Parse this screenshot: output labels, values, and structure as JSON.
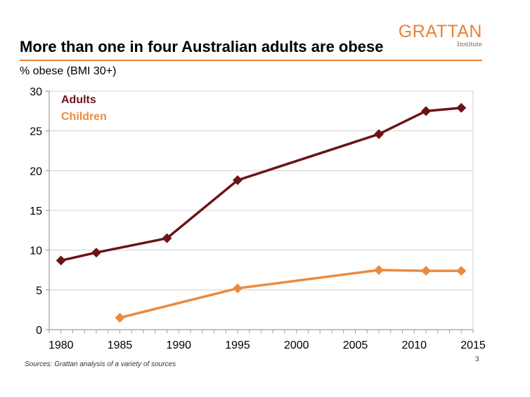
{
  "slide": {
    "title": "More than one in four Australian adults are obese",
    "logo_main": "GRATTAN",
    "logo_sub": "Institute",
    "source": "Sources: Grattan analysis of a variety of sources",
    "page_number": "3"
  },
  "colors": {
    "adults": "#6B1416",
    "children": "#EC8A3C",
    "accent": "#E9833A",
    "grid": "#d0d0d0"
  },
  "chart_data": {
    "type": "line",
    "title": "More than one in four Australian adults are obese",
    "ylabel": "% obese (BMI 30+)",
    "xlabel": "",
    "xlim": [
      1979,
      2015
    ],
    "ylim": [
      0,
      30
    ],
    "x_ticks": [
      1980,
      1985,
      1990,
      1995,
      2000,
      2005,
      2010,
      2015
    ],
    "y_ticks": [
      0,
      5,
      10,
      15,
      20,
      25,
      30
    ],
    "grid": true,
    "legend": "top-left",
    "series": [
      {
        "name": "Adults",
        "color": "#6B1416",
        "marker": "diamond",
        "x": [
          1980,
          1983,
          1989,
          1995,
          2007,
          2011,
          2014
        ],
        "y": [
          8.7,
          9.7,
          11.5,
          18.8,
          24.6,
          27.5,
          27.9
        ]
      },
      {
        "name": "Children",
        "color": "#EC8A3C",
        "marker": "diamond",
        "x": [
          1985,
          1995,
          2007,
          2011,
          2014
        ],
        "y": [
          1.5,
          5.2,
          7.5,
          7.4,
          7.4
        ]
      }
    ]
  }
}
